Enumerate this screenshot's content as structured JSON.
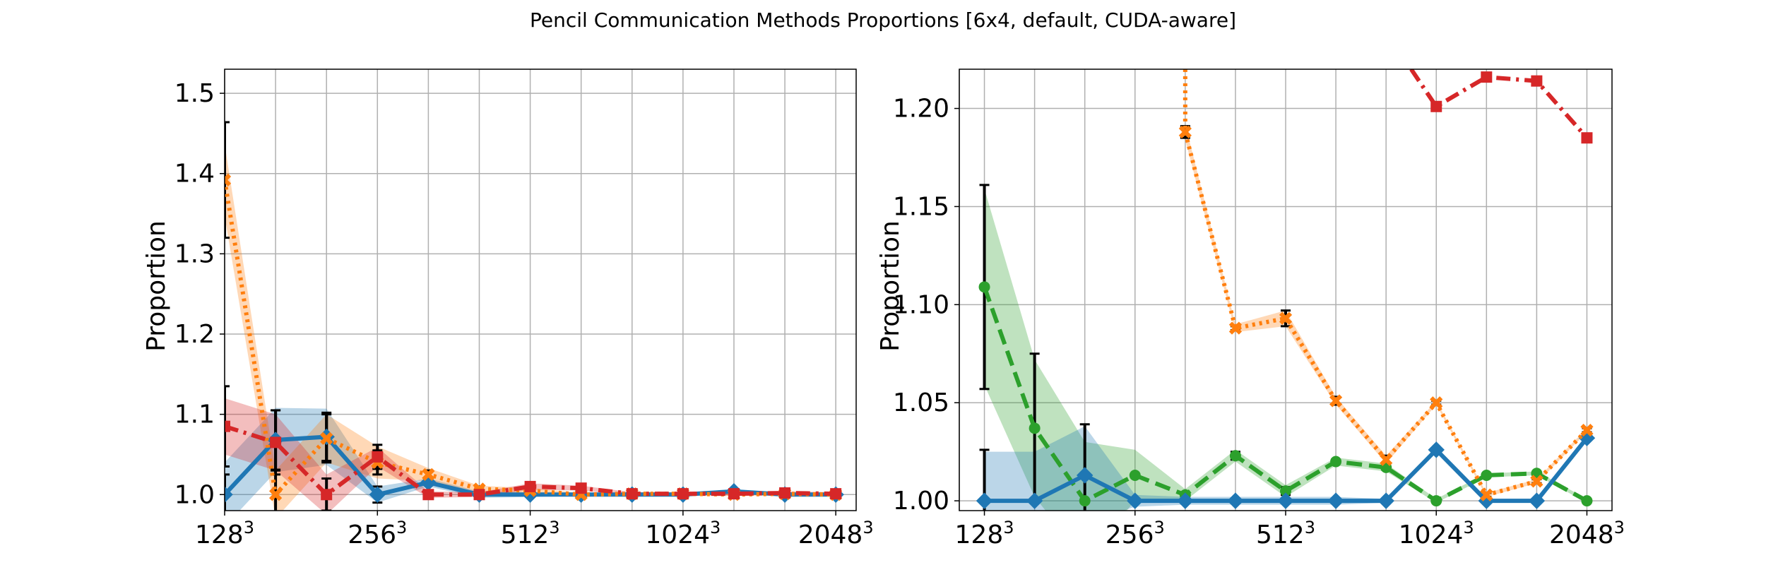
{
  "title": "Pencil Communication Methods Proportions [6x4, default, CUDA-aware]",
  "colors": {
    "blue": "#1f77b4",
    "orange": "#ff7f0e",
    "green": "#2ca02c",
    "red": "#d62728",
    "grid": "#b0b0b0",
    "errorbar": "#000000"
  },
  "chart_data": [
    {
      "type": "line",
      "ylabel": "Proportion",
      "xlabel": "",
      "xlim": [
        0,
        12.4
      ],
      "ylim": [
        0.98,
        1.53
      ],
      "yticks": [
        1.0,
        1.1,
        1.2,
        1.3,
        1.4,
        1.5
      ],
      "ytick_labels": [
        "1.0",
        "1.1",
        "1.2",
        "1.3",
        "1.4",
        "1.5"
      ],
      "xticks": [
        0,
        3,
        6,
        9,
        12
      ],
      "xtick_labels": [
        {
          "base": "128",
          "sup": "3"
        },
        {
          "base": "256",
          "sup": "3"
        },
        {
          "base": "512",
          "sup": "3"
        },
        {
          "base": "1024",
          "sup": "3"
        },
        {
          "base": "2048",
          "sup": "3"
        }
      ],
      "x_grid": [
        0,
        1,
        2,
        3,
        4,
        5,
        6,
        7,
        8,
        9,
        10,
        11,
        12
      ],
      "grid": true,
      "series": [
        {
          "color": "blue",
          "linestyle": "solid",
          "marker": "diamond",
          "x": [
            0,
            1,
            2,
            3,
            4,
            5,
            6,
            7,
            8,
            9,
            10,
            11,
            12
          ],
          "y": [
            1.0,
            1.068,
            1.072,
            1.0,
            1.015,
            1.0,
            1.0,
            1.0,
            1.0,
            1.0,
            1.004,
            1.0,
            1.0
          ],
          "band": [
            0.04,
            0.04,
            0.035,
            0.01,
            0.005,
            0.004,
            0.003,
            0.002,
            0.002,
            0.002,
            0.002,
            0.002,
            0.002
          ],
          "err": [
            0.025,
            0.037,
            0.03,
            0.01,
            0.003,
            0.002,
            0.002,
            0.001,
            0.001,
            0.001,
            0.001,
            0.001,
            0.001
          ]
        },
        {
          "color": "orange",
          "linestyle": "dotted",
          "marker": "x",
          "x": [
            0,
            1,
            2,
            3,
            4,
            5,
            6,
            7,
            8,
            9,
            10,
            11,
            12
          ],
          "y": [
            1.392,
            1.0,
            1.07,
            1.04,
            1.025,
            1.007,
            1.005,
            1.0,
            1.001,
            1.001,
            1.0,
            1.001,
            1.0
          ],
          "band": [
            0.045,
            0.03,
            0.03,
            0.02,
            0.008,
            0.004,
            0.003,
            0.002,
            0.002,
            0.002,
            0.002,
            0.002,
            0.002
          ],
          "err": [
            0.072,
            0.03,
            0.03,
            0.015,
            0.005,
            0.003,
            0.002,
            0.001,
            0.001,
            0.001,
            0.001,
            0.001,
            0.001
          ]
        },
        {
          "color": "red",
          "linestyle": "dashdot",
          "marker": "square",
          "x": [
            0,
            1,
            2,
            3,
            4,
            5,
            6,
            7,
            8,
            9,
            10,
            11,
            12
          ],
          "y": [
            1.085,
            1.065,
            1.0,
            1.047,
            1.0,
            1.0,
            1.01,
            1.008,
            1.001,
            1.001,
            1.001,
            1.002,
            1.001
          ],
          "band": [
            0.035,
            0.035,
            0.025,
            0.012,
            0.004,
            0.003,
            0.004,
            0.003,
            0.002,
            0.002,
            0.002,
            0.002,
            0.002
          ],
          "err": [
            0.05,
            0.04,
            0.02,
            0.015,
            0.003,
            0.002,
            0.002,
            0.002,
            0.001,
            0.001,
            0.001,
            0.001,
            0.001
          ]
        }
      ]
    },
    {
      "type": "line",
      "ylabel": "Proportion",
      "xlabel": "",
      "xlim": [
        -0.5,
        12.5
      ],
      "ylim": [
        0.995,
        1.22
      ],
      "yticks": [
        1.0,
        1.05,
        1.1,
        1.15,
        1.2
      ],
      "ytick_labels": [
        "1.00",
        "1.05",
        "1.10",
        "1.15",
        "1.20"
      ],
      "xticks": [
        0,
        3,
        6,
        9,
        12
      ],
      "xtick_labels": [
        {
          "base": "128",
          "sup": "3"
        },
        {
          "base": "256",
          "sup": "3"
        },
        {
          "base": "512",
          "sup": "3"
        },
        {
          "base": "1024",
          "sup": "3"
        },
        {
          "base": "2048",
          "sup": "3"
        }
      ],
      "x_grid": [
        -0.5,
        0,
        1,
        2,
        3,
        4,
        5,
        6,
        7,
        8,
        9,
        10,
        11,
        12
      ],
      "grid": true,
      "series": [
        {
          "color": "green",
          "linestyle": "dashed",
          "marker": "circle",
          "x": [
            0,
            1,
            2,
            3,
            4,
            5,
            6,
            7,
            8,
            9,
            10,
            11,
            12
          ],
          "y": [
            1.109,
            1.037,
            1.0,
            1.013,
            1.003,
            1.023,
            1.005,
            1.02,
            1.017,
            1.0,
            1.013,
            1.014,
            1.0
          ],
          "band": [
            0.05,
            0.035,
            0.03,
            0.013,
            0.003,
            0.003,
            0.003,
            0.002,
            0.002,
            0.001,
            0.001,
            0.001,
            0.001
          ],
          "err": [
            0.052,
            0.038,
            0.0,
            0.0,
            0.0,
            0.002,
            0.002,
            0.001,
            0.001,
            0.0,
            0.0,
            0.0,
            0.0
          ]
        },
        {
          "color": "blue",
          "linestyle": "solid",
          "marker": "diamond",
          "x": [
            0,
            1,
            2,
            3,
            4,
            5,
            6,
            7,
            8,
            9,
            10,
            11,
            12
          ],
          "y": [
            1.0,
            1.0,
            1.013,
            1.0,
            1.0,
            1.0,
            1.0,
            1.0,
            1.0,
            1.026,
            1.0,
            1.0,
            1.032
          ],
          "band": [
            0.025,
            0.025,
            0.025,
            0.003,
            0.002,
            0.002,
            0.002,
            0.002,
            0.001,
            0.001,
            0.001,
            0.001,
            0.001
          ],
          "err": [
            0.026,
            0.0,
            0.026,
            0.0,
            0.0,
            0.0,
            0.0,
            0.0,
            0.0,
            0.0,
            0.0,
            0.0,
            0.0
          ]
        },
        {
          "color": "orange",
          "linestyle": "dotted",
          "marker": "x",
          "x": [
            4,
            4,
            5,
            6,
            7,
            8,
            9,
            10,
            11,
            12
          ],
          "y": [
            1.22,
            1.188,
            1.088,
            1.093,
            1.051,
            1.021,
            1.05,
            1.003,
            1.01,
            1.036
          ],
          "band": [
            0.0,
            0.004,
            0.002,
            0.004,
            0.002,
            0.002,
            0.001,
            0.001,
            0.001,
            0.001
          ],
          "err": [
            0.0,
            0.003,
            0.001,
            0.004,
            0.002,
            0.002,
            0.001,
            0.001,
            0.001,
            0.001
          ]
        },
        {
          "color": "red",
          "linestyle": "dashdot",
          "marker": "square",
          "x": [
            8.5,
            9,
            10,
            11,
            12
          ],
          "y": [
            1.22,
            1.201,
            1.216,
            1.214,
            1.185
          ],
          "band": [
            0.0,
            0.0,
            0.0,
            0.0,
            0.0
          ],
          "err": [
            0.0,
            0.0,
            0.0,
            0.0,
            0.0
          ],
          "first_unmarked": true
        }
      ]
    }
  ]
}
